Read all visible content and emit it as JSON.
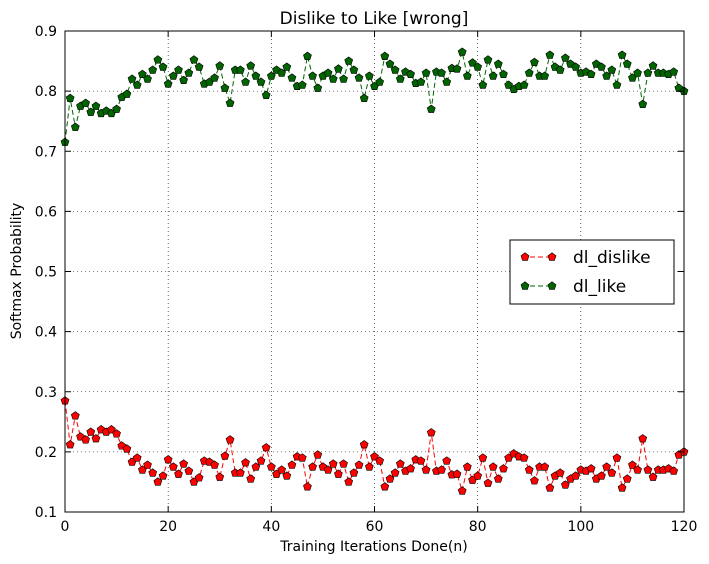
{
  "chart_data": {
    "type": "line",
    "title": "Dislike to Like [wrong]",
    "xlabel": "Training Iterations Done(n)",
    "ylabel": "Softmax Probability",
    "xlim": [
      0,
      120
    ],
    "ylim": [
      0.1,
      0.9
    ],
    "xticks": [
      "0",
      "20",
      "40",
      "60",
      "80",
      "100",
      "120"
    ],
    "yticks": [
      "0.1",
      "0.2",
      "0.3",
      "0.4",
      "0.5",
      "0.6",
      "0.7",
      "0.8",
      "0.9"
    ],
    "grid": true,
    "legend_position": "center-right",
    "series": [
      {
        "name": "dl_dislike",
        "color": "#ff0000",
        "marker": "pentagon",
        "linestyle": "dashed",
        "x": [
          0,
          1,
          2,
          3,
          4,
          5,
          6,
          7,
          8,
          9,
          10,
          11,
          12,
          13,
          14,
          15,
          16,
          17,
          18,
          19,
          20,
          21,
          22,
          23,
          24,
          25,
          26,
          27,
          28,
          29,
          30,
          31,
          32,
          33,
          34,
          35,
          36,
          37,
          38,
          39,
          40,
          41,
          42,
          43,
          44,
          45,
          46,
          47,
          48,
          49,
          50,
          51,
          52,
          53,
          54,
          55,
          56,
          57,
          58,
          59,
          60,
          61,
          62,
          63,
          64,
          65,
          66,
          67,
          68,
          69,
          70,
          71,
          72,
          73,
          74,
          75,
          76,
          77,
          78,
          79,
          80,
          81,
          82,
          83,
          84,
          85,
          86,
          87,
          88,
          89,
          90,
          91,
          92,
          93,
          94,
          95,
          96,
          97,
          98,
          99,
          100,
          101,
          102,
          103,
          104,
          105,
          106,
          107,
          108,
          109,
          110,
          111,
          112,
          113,
          114,
          115,
          116,
          117,
          118,
          119,
          120
        ],
        "values": [
          0.285,
          0.212,
          0.26,
          0.225,
          0.22,
          0.233,
          0.222,
          0.237,
          0.233,
          0.237,
          0.23,
          0.21,
          0.205,
          0.183,
          0.19,
          0.17,
          0.178,
          0.165,
          0.15,
          0.16,
          0.187,
          0.175,
          0.163,
          0.18,
          0.168,
          0.15,
          0.157,
          0.185,
          0.183,
          0.178,
          0.158,
          0.193,
          0.22,
          0.165,
          0.165,
          0.182,
          0.155,
          0.175,
          0.185,
          0.207,
          0.175,
          0.163,
          0.17,
          0.16,
          0.178,
          0.192,
          0.19,
          0.142,
          0.175,
          0.195,
          0.175,
          0.17,
          0.18,
          0.163,
          0.18,
          0.15,
          0.165,
          0.178,
          0.212,
          0.175,
          0.192,
          0.185,
          0.142,
          0.155,
          0.165,
          0.18,
          0.168,
          0.172,
          0.187,
          0.185,
          0.17,
          0.232,
          0.168,
          0.17,
          0.185,
          0.162,
          0.163,
          0.135,
          0.175,
          0.153,
          0.16,
          0.19,
          0.148,
          0.175,
          0.155,
          0.172,
          0.19,
          0.197,
          0.192,
          0.19,
          0.17,
          0.152,
          0.175,
          0.175,
          0.14,
          0.16,
          0.165,
          0.145,
          0.155,
          0.16,
          0.17,
          0.168,
          0.172,
          0.155,
          0.16,
          0.175,
          0.165,
          0.19,
          0.14,
          0.155,
          0.178,
          0.17,
          0.222,
          0.17,
          0.158,
          0.17,
          0.17,
          0.172,
          0.168,
          0.195,
          0.2
        ]
      },
      {
        "name": "dl_like",
        "color": "#006400",
        "marker": "pentagon",
        "linestyle": "dashed",
        "x": [
          0,
          1,
          2,
          3,
          4,
          5,
          6,
          7,
          8,
          9,
          10,
          11,
          12,
          13,
          14,
          15,
          16,
          17,
          18,
          19,
          20,
          21,
          22,
          23,
          24,
          25,
          26,
          27,
          28,
          29,
          30,
          31,
          32,
          33,
          34,
          35,
          36,
          37,
          38,
          39,
          40,
          41,
          42,
          43,
          44,
          45,
          46,
          47,
          48,
          49,
          50,
          51,
          52,
          53,
          54,
          55,
          56,
          57,
          58,
          59,
          60,
          61,
          62,
          63,
          64,
          65,
          66,
          67,
          68,
          69,
          70,
          71,
          72,
          73,
          74,
          75,
          76,
          77,
          78,
          79,
          80,
          81,
          82,
          83,
          84,
          85,
          86,
          87,
          88,
          89,
          90,
          91,
          92,
          93,
          94,
          95,
          96,
          97,
          98,
          99,
          100,
          101,
          102,
          103,
          104,
          105,
          106,
          107,
          108,
          109,
          110,
          111,
          112,
          113,
          114,
          115,
          116,
          117,
          118,
          119,
          120
        ],
        "values": [
          0.715,
          0.788,
          0.74,
          0.775,
          0.78,
          0.765,
          0.775,
          0.763,
          0.767,
          0.763,
          0.77,
          0.79,
          0.795,
          0.82,
          0.81,
          0.828,
          0.82,
          0.835,
          0.852,
          0.84,
          0.812,
          0.825,
          0.835,
          0.818,
          0.83,
          0.852,
          0.84,
          0.812,
          0.815,
          0.822,
          0.842,
          0.805,
          0.78,
          0.835,
          0.835,
          0.815,
          0.842,
          0.825,
          0.815,
          0.793,
          0.825,
          0.835,
          0.83,
          0.84,
          0.822,
          0.808,
          0.81,
          0.858,
          0.825,
          0.805,
          0.825,
          0.83,
          0.82,
          0.837,
          0.82,
          0.85,
          0.835,
          0.822,
          0.788,
          0.825,
          0.808,
          0.815,
          0.858,
          0.845,
          0.835,
          0.82,
          0.832,
          0.828,
          0.813,
          0.815,
          0.83,
          0.77,
          0.832,
          0.83,
          0.815,
          0.838,
          0.837,
          0.865,
          0.825,
          0.847,
          0.84,
          0.81,
          0.852,
          0.825,
          0.845,
          0.828,
          0.81,
          0.803,
          0.808,
          0.81,
          0.83,
          0.848,
          0.825,
          0.825,
          0.86,
          0.84,
          0.835,
          0.855,
          0.845,
          0.84,
          0.83,
          0.832,
          0.828,
          0.845,
          0.84,
          0.825,
          0.835,
          0.81,
          0.86,
          0.845,
          0.822,
          0.83,
          0.778,
          0.83,
          0.842,
          0.83,
          0.83,
          0.828,
          0.832,
          0.805,
          0.8
        ]
      }
    ]
  }
}
